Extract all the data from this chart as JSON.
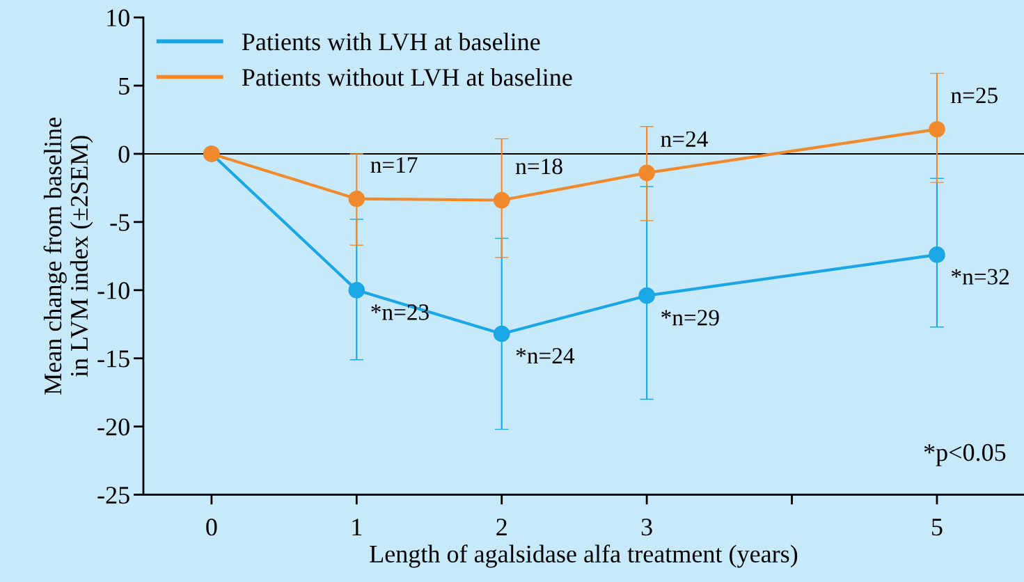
{
  "chart_data": {
    "type": "line",
    "xlabel": "Length of agalsidase alfa treatment (years)",
    "ylabel": "Mean change from baseline\nin LVM index (±2SEM)",
    "x": [
      0,
      1,
      2,
      3,
      5
    ],
    "series": [
      {
        "name": "Patients with LVH at baseline",
        "color": "#1aa7e3",
        "values": [
          0,
          -10.0,
          -13.2,
          -10.4,
          -7.4
        ],
        "errors": [
          null,
          [
            -15.1,
            -4.8
          ],
          [
            -20.2,
            -6.2
          ],
          [
            -18.0,
            -2.4
          ],
          [
            -12.7,
            -1.8
          ]
        ]
      },
      {
        "name": "Patients without LVH at baseline",
        "color": "#f08a2c",
        "values": [
          0,
          -3.3,
          -3.4,
          -1.4,
          1.8
        ],
        "errors": [
          null,
          [
            -6.7,
            0
          ],
          [
            -7.6,
            1.1
          ],
          [
            -4.9,
            2.0
          ],
          [
            -2.1,
            5.9
          ]
        ]
      }
    ],
    "xlim": [
      -0.47,
      5.6
    ],
    "xticks": [
      0,
      1,
      2,
      3,
      {
        "value": 4,
        "label": null
      },
      5
    ],
    "ylim": [
      -25,
      10
    ],
    "yticks": [
      -25,
      -20,
      -15,
      -10,
      -5,
      0,
      5,
      10
    ],
    "ref_lines": [
      {
        "axis": "y",
        "value": 0,
        "color": "#000000"
      }
    ],
    "annotations": [
      {
        "text": "n=17",
        "x": 1,
        "y": -3.3
      },
      {
        "text": "n=18",
        "x": 2,
        "y": -3.4
      },
      {
        "text": "n=24",
        "x": 3,
        "y": -1.4
      },
      {
        "text": "n=25",
        "x": 5,
        "y": 1.8
      },
      {
        "text": "*n=23",
        "x": 1,
        "y": -10.0
      },
      {
        "text": "*n=24",
        "x": 2,
        "y": -13.2
      },
      {
        "text": "*n=29",
        "x": 3,
        "y": -10.4
      },
      {
        "text": "*n=32",
        "x": 5,
        "y": -7.4
      },
      "*p<0.05"
    ],
    "marker": "circle",
    "legend": "top left",
    "grid": false
  }
}
